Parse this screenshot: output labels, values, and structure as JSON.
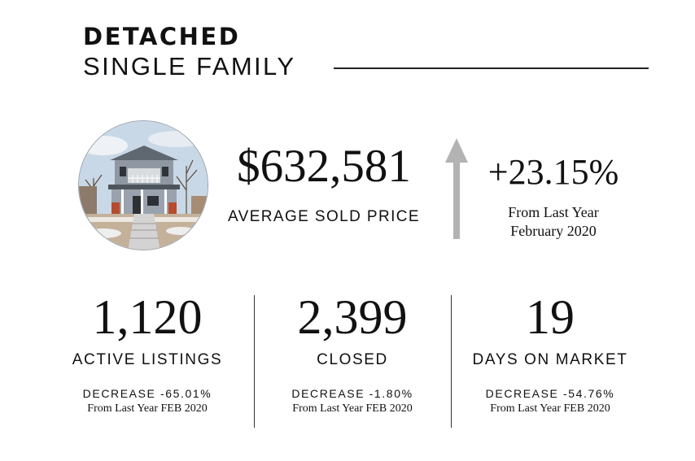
{
  "header": {
    "title_bold": "DETACHED",
    "title_light": "SINGLE FAMILY"
  },
  "hero": {
    "image_description_icon": "house-photo",
    "price": "$632,581",
    "price_label": "AVERAGE SOLD PRICE",
    "trend_icon": "up-arrow-icon",
    "change": "+23.15%",
    "note_line1": "From Last Year",
    "note_line2": "February 2020"
  },
  "stats": [
    {
      "value": "1,120",
      "label": "ACTIVE LISTINGS",
      "change": "DECREASE -65.01%",
      "note": "From Last Year FEB 2020"
    },
    {
      "value": "2,399",
      "label": "CLOSED",
      "change": "DECREASE -1.80%",
      "note": "From Last Year FEB 2020"
    },
    {
      "value": "19",
      "label": "DAYS ON MARKET",
      "change": "DECREASE -54.76%",
      "note": "From Last Year FEB 2020"
    }
  ],
  "colors": {
    "text": "#111111",
    "arrow": "#b3b3b3",
    "rule": "#222222"
  }
}
